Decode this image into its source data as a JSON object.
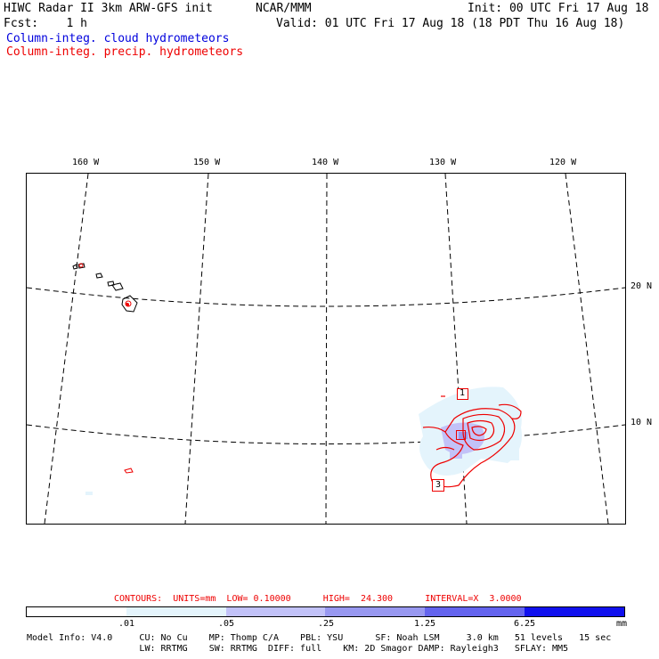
{
  "header": {
    "model": "HIWC Radar II 3km ARW-GFS init",
    "center": "NCAR/MMM",
    "init": "Init: 00 UTC Fri 17 Aug 18",
    "fcst": "Fcst:    1 h",
    "valid": "Valid: 01 UTC Fri 17 Aug 18 (18 PDT Thu 16 Aug 18)"
  },
  "legend": {
    "cloud_label": "Column-integ. cloud hydrometeors",
    "cloud_color": "#0000dd",
    "precip_label": "Column-integ. precip. hydrometeors",
    "precip_color": "#ee0000"
  },
  "map": {
    "lon_labels": [
      "160 W",
      "150 W",
      "140 W",
      "130 W",
      "120 W"
    ],
    "lat_labels": [
      "20 N",
      "10 N"
    ],
    "box_labels": [
      "1",
      "3"
    ]
  },
  "contours": {
    "line": "CONTOURS:  UNITS=mm  LOW= 0.10000      HIGH=  24.300      INTERVAL=X  3.0000"
  },
  "colorbar": {
    "ticks": [
      ".01",
      ".05",
      ".25",
      "1.25",
      "6.25"
    ],
    "units": "mm",
    "colors": [
      "#ffffff",
      "#e4f4fc",
      "#c2c2f8",
      "#9898f0",
      "#6464ee",
      "#1010ee"
    ]
  },
  "model_info": {
    "line1": "Model Info: V4.0     CU: No Cu    MP: Thomp C/A    PBL: YSU      SF: Noah LSM     3.0 km   51 levels   15 sec",
    "line2": "                     LW: RRTMG    SW: RRTMG  DIFF: full    KM: 2D Smagor DAMP: Rayleigh3   SFLAY: MM5"
  }
}
